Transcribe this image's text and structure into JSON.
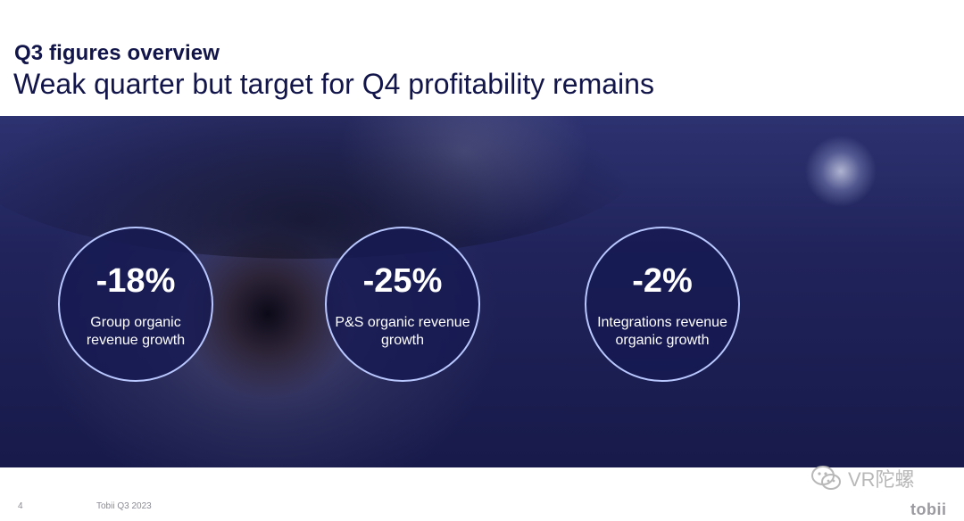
{
  "header": {
    "kicker": "Q3 figures overview",
    "headline": "Weak quarter but target for Q4 profitability remains"
  },
  "metrics": [
    {
      "value": "-18%",
      "label": "Group organic revenue growth"
    },
    {
      "value": "-25%",
      "label": "P&S organic revenue growth"
    },
    {
      "value": "-2%",
      "label": "Integrations revenue organic growth"
    }
  ],
  "footer": {
    "page_number": "4",
    "text": "Tobii Q3 2023",
    "brand": "tobii"
  },
  "watermark": {
    "icon": "wechat-icon",
    "text": "VR陀螺"
  },
  "colors": {
    "title": "#12154a",
    "circle_border": "#b9c7ff",
    "hero_dark": "#171a4a"
  }
}
